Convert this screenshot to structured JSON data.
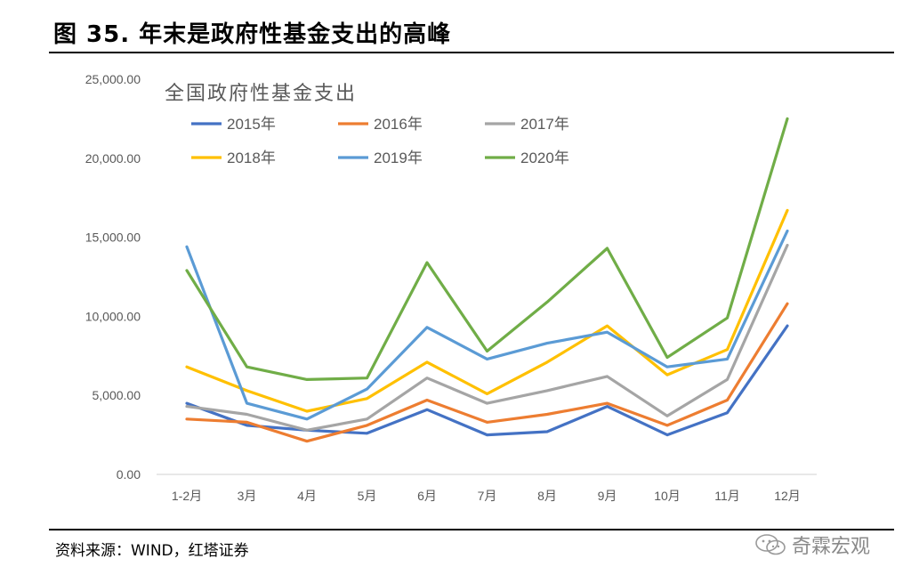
{
  "figure": {
    "title": "图 35. 年末是政府性基金支出的高峰",
    "source": "资料来源：WIND，红塔证券",
    "watermark": "奇霖宏观"
  },
  "chart_data": {
    "type": "line",
    "title": "全国政府性基金支出",
    "categories": [
      "1-2月",
      "3月",
      "4月",
      "5月",
      "6月",
      "7月",
      "8月",
      "9月",
      "10月",
      "11月",
      "12月"
    ],
    "ylim": [
      0,
      25000
    ],
    "yticks": [
      "0.00",
      "5,000.00",
      "10,000.00",
      "15,000.00",
      "20,000.00",
      "25,000.00"
    ],
    "ytick_values": [
      0,
      5000,
      10000,
      15000,
      20000,
      25000
    ],
    "grid": false,
    "legend_position": "top-left",
    "series": [
      {
        "name": "2015年",
        "color": "#4472C4",
        "values": [
          4500,
          3100,
          2800,
          2600,
          4100,
          2500,
          2700,
          4300,
          2500,
          3900,
          9400
        ]
      },
      {
        "name": "2016年",
        "color": "#ED7D31",
        "values": [
          3500,
          3300,
          2100,
          3100,
          4700,
          3300,
          3800,
          4500,
          3100,
          4700,
          10800
        ]
      },
      {
        "name": "2017年",
        "color": "#A5A5A5",
        "values": [
          4300,
          3800,
          2800,
          3500,
          6100,
          4500,
          5300,
          6200,
          3700,
          6000,
          14500
        ]
      },
      {
        "name": "2018年",
        "color": "#FFC000",
        "values": [
          6800,
          5300,
          4000,
          4800,
          7100,
          5100,
          7100,
          9400,
          6300,
          7900,
          16700
        ]
      },
      {
        "name": "2019年",
        "color": "#5B9BD5",
        "values": [
          14400,
          4500,
          3500,
          5400,
          9300,
          7300,
          8300,
          9000,
          6800,
          7300,
          15400
        ]
      },
      {
        "name": "2020年",
        "color": "#70AD47",
        "values": [
          12900,
          6800,
          6000,
          6100,
          13400,
          7800,
          10900,
          14300,
          7400,
          9900,
          22500
        ]
      }
    ]
  }
}
